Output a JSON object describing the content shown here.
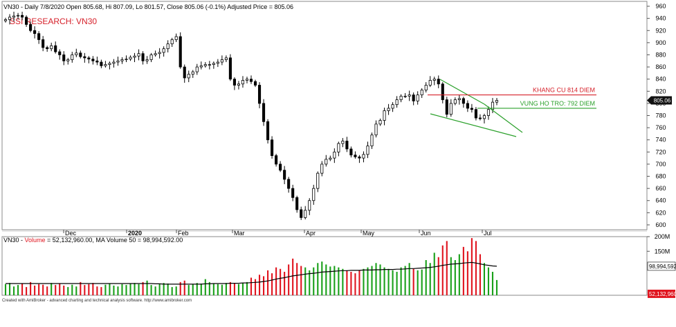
{
  "header": {
    "info_line": "VN30 - Daily 7/8/2020 Open 805.68, Hi 807.09, Lo 801.57, Close 805.06 (-0.1%) Adjusted Price = 805.06",
    "watermark": "SSI RESEARCH: VN30"
  },
  "volume_header": {
    "prefix": "VN30 - ",
    "volume_word": "Volume",
    "rest": " = 52,132,960.00, MA Volume 50 = 98,994,592.00"
  },
  "footer": {
    "credit": "Created with AmiBroker - advanced charting and technical analysis software. http://www.amibroker.com"
  },
  "colors": {
    "up": "#19a019",
    "down": "#e0141e",
    "resistance": "#d6202a",
    "support": "#2aa02a",
    "candle": "#000000",
    "ma": "#000000"
  },
  "chart_data": [
    {
      "type": "candlestick",
      "ylim": [
        592,
        968
      ],
      "yticks": [
        600,
        620,
        640,
        660,
        680,
        700,
        720,
        740,
        760,
        780,
        800,
        820,
        840,
        860,
        880,
        900,
        920,
        940,
        960
      ],
      "month_labels": [
        "Dec",
        "2020",
        "Feb",
        "Mar",
        "Apr",
        "May",
        "Jun",
        "Jul"
      ],
      "close_series": [
        938,
        942,
        944,
        945,
        942,
        930,
        920,
        915,
        905,
        892,
        890,
        895,
        885,
        880,
        870,
        872,
        880,
        883,
        877,
        875,
        873,
        870,
        868,
        862,
        864,
        866,
        868,
        870,
        872,
        873,
        876,
        878,
        882,
        870,
        872,
        880,
        882,
        884,
        890,
        898,
        905,
        910,
        860,
        842,
        848,
        852,
        860,
        862,
        864,
        864,
        866,
        868,
        872,
        875,
        840,
        830,
        832,
        838,
        840,
        836,
        830,
        800,
        770,
        740,
        714,
        700,
        690,
        675,
        660,
        645,
        625,
        612,
        624,
        640,
        660,
        685,
        700,
        708,
        710,
        720,
        734,
        738,
        725,
        715,
        712,
        710,
        716,
        730,
        748,
        766,
        772,
        788,
        792,
        798,
        806,
        812,
        812,
        814,
        804,
        814,
        822,
        830,
        838,
        840,
        832,
        806,
        782,
        800,
        806,
        808,
        800,
        792,
        790,
        776,
        775,
        780,
        790,
        802,
        805
      ],
      "annotations": [
        {
          "label": "KHANG CU 814 DIEM",
          "value": 814,
          "style": "resistance"
        },
        {
          "label": "VUNG HO TRO: 792 DIEM",
          "value": 792,
          "style": "support"
        }
      ],
      "last_price_label": "805.06"
    },
    {
      "type": "bar",
      "series": [
        {
          "name": "Volume",
          "note": "per-day volume bars, up/down colored"
        },
        {
          "name": "MA Volume 50"
        }
      ],
      "ylim": [
        0,
        200000000
      ],
      "yticks_labels": [
        "200M",
        "150M"
      ],
      "volume_millions": [
        38,
        42,
        30,
        35,
        40,
        28,
        45,
        33,
        38,
        36,
        30,
        42,
        35,
        40,
        33,
        28,
        36,
        30,
        45,
        35,
        38,
        42,
        30,
        28,
        36,
        40,
        33,
        30,
        38,
        35,
        40,
        42,
        38,
        45,
        50,
        35,
        30,
        38,
        42,
        40,
        28,
        30,
        45,
        50,
        35,
        38,
        42,
        40,
        55,
        45,
        40,
        38,
        36,
        42,
        45,
        40,
        38,
        42,
        45,
        60,
        55,
        70,
        65,
        85,
        75,
        95,
        90,
        80,
        105,
        125,
        110,
        100,
        95,
        85,
        95,
        110,
        115,
        105,
        98,
        100,
        95,
        90,
        85,
        80,
        75,
        85,
        90,
        95,
        100,
        110,
        105,
        95,
        90,
        85,
        80,
        95,
        100,
        110,
        90,
        85,
        88,
        120,
        110,
        145,
        130,
        170,
        185,
        130,
        120,
        140,
        165,
        150,
        195,
        185,
        140,
        110,
        95,
        80,
        52
      ],
      "ma_millions": [
        40,
        40,
        40,
        40,
        40,
        40,
        40,
        40,
        40,
        40,
        40,
        40,
        40,
        40,
        40,
        40,
        40,
        40,
        40,
        40,
        40,
        40,
        40,
        40,
        40,
        40,
        40,
        40,
        40,
        40,
        40,
        40,
        40,
        40,
        40,
        40,
        39,
        39,
        38,
        38,
        38,
        38,
        38,
        38,
        38,
        38,
        38,
        38,
        39,
        39,
        40,
        40,
        40,
        40,
        41,
        41,
        41,
        42,
        42,
        43,
        44,
        45,
        47,
        49,
        52,
        55,
        58,
        60,
        63,
        66,
        68,
        70,
        72,
        74,
        75,
        77,
        79,
        80,
        81,
        82,
        83,
        84,
        84,
        85,
        85,
        85,
        86,
        86,
        86,
        87,
        87,
        88,
        88,
        88,
        89,
        89,
        90,
        91,
        91,
        92,
        93,
        94,
        95,
        97,
        99,
        102,
        104,
        106,
        107,
        108,
        110,
        111,
        112,
        110,
        107,
        104,
        102,
        100,
        99
      ],
      "ma_label": "98,994,592",
      "last_volume_label": "52,132,960"
    }
  ]
}
